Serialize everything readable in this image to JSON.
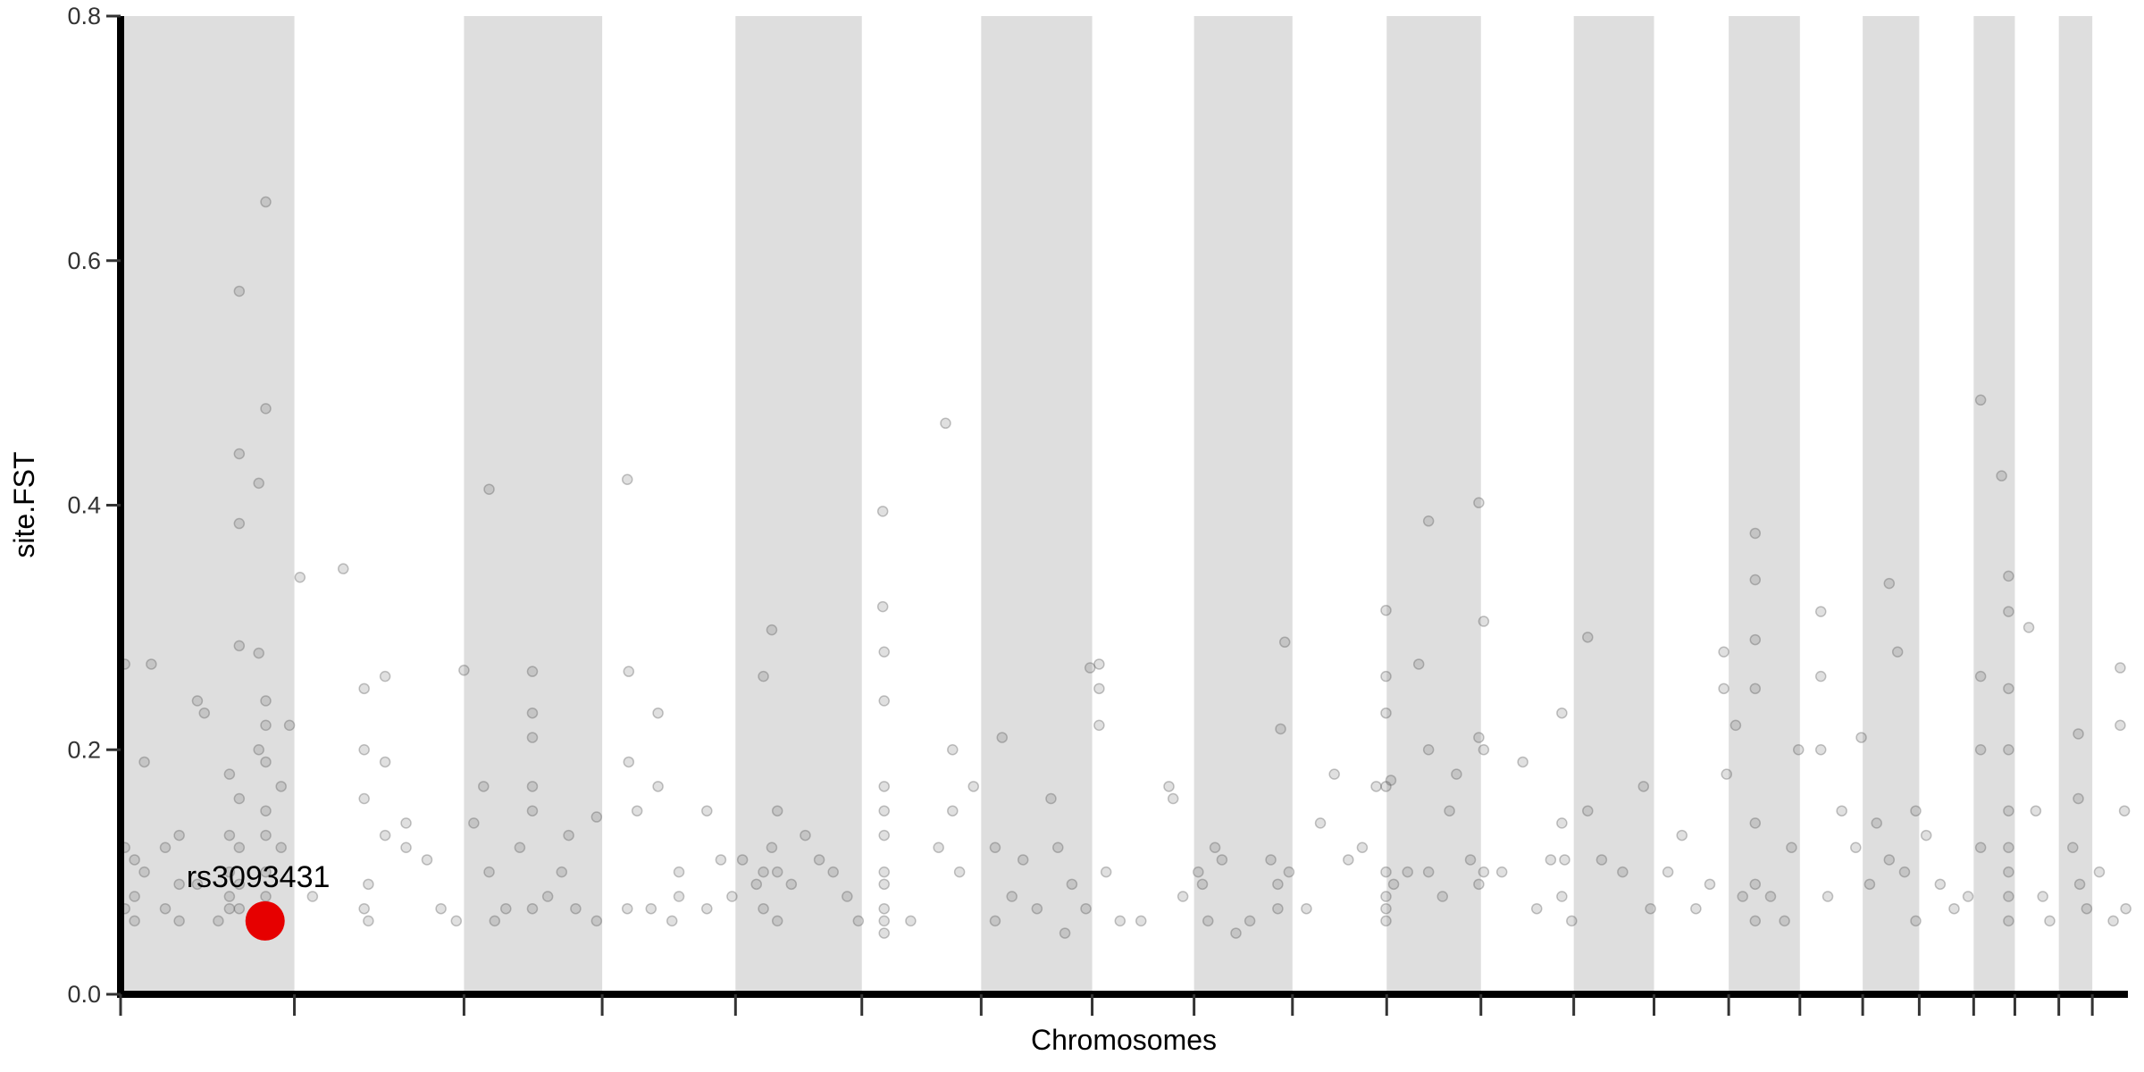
{
  "chart_data": {
    "type": "scatter",
    "title": "",
    "xlabel": "Chromosomes",
    "ylabel": "site.FST",
    "ylim": [
      0,
      0.8
    ],
    "yticks": [
      "0.0",
      "0.2",
      "0.4",
      "0.6",
      "0.8"
    ],
    "ytick_values": [
      0,
      0.2,
      0.4,
      0.6,
      0.8
    ],
    "grid": false,
    "alternating_band_color": "#dedede",
    "point_color": "#555555",
    "highlight_color": "#e60000",
    "chromosome_sizes_mb": [
      249,
      243,
      198,
      191,
      181,
      171,
      159,
      146,
      141,
      135,
      135,
      133,
      115,
      107,
      102,
      90,
      81,
      78,
      59,
      63,
      48,
      51
    ],
    "highlight": {
      "label": "rs3093431",
      "chromosome": 1,
      "position_mb": 207,
      "fst": 0.06
    },
    "points_by_chromosome": [
      [
        [
          6,
          0.27
        ],
        [
          6,
          0.12
        ],
        [
          6,
          0.07
        ],
        [
          20,
          0.11
        ],
        [
          20,
          0.08
        ],
        [
          20,
          0.06
        ],
        [
          34,
          0.19
        ],
        [
          34,
          0.1
        ],
        [
          44,
          0.27
        ],
        [
          64,
          0.12
        ],
        [
          64,
          0.07
        ],
        [
          84,
          0.09
        ],
        [
          84,
          0.06
        ],
        [
          84,
          0.13
        ],
        [
          110,
          0.24
        ],
        [
          110,
          0.09
        ],
        [
          120,
          0.23
        ],
        [
          140,
          0.06
        ],
        [
          156,
          0.18
        ],
        [
          156,
          0.13
        ],
        [
          156,
          0.1
        ],
        [
          156,
          0.08
        ],
        [
          156,
          0.07
        ],
        [
          170,
          0.575
        ],
        [
          170,
          0.442
        ],
        [
          170,
          0.385
        ],
        [
          170,
          0.16
        ],
        [
          170,
          0.12
        ],
        [
          170,
          0.09
        ],
        [
          170,
          0.07
        ],
        [
          170,
          0.285
        ],
        [
          198,
          0.418
        ],
        [
          198,
          0.279
        ],
        [
          198,
          0.2
        ],
        [
          208,
          0.648
        ],
        [
          208,
          0.479
        ],
        [
          208,
          0.24
        ],
        [
          208,
          0.22
        ],
        [
          208,
          0.19
        ],
        [
          208,
          0.15
        ],
        [
          208,
          0.13
        ],
        [
          208,
          0.1
        ],
        [
          208,
          0.08
        ],
        [
          230,
          0.17
        ],
        [
          230,
          0.12
        ],
        [
          242,
          0.22
        ]
      ],
      [
        [
          8,
          0.341
        ],
        [
          26,
          0.08
        ],
        [
          70,
          0.348
        ],
        [
          100,
          0.25
        ],
        [
          100,
          0.2
        ],
        [
          100,
          0.16
        ],
        [
          100,
          0.07
        ],
        [
          106,
          0.09
        ],
        [
          106,
          0.06
        ],
        [
          130,
          0.26
        ],
        [
          130,
          0.19
        ],
        [
          130,
          0.13
        ],
        [
          160,
          0.14
        ],
        [
          160,
          0.12
        ],
        [
          190,
          0.11
        ],
        [
          210,
          0.07
        ],
        [
          232,
          0.06
        ]
      ],
      [
        [
          0,
          0.265
        ],
        [
          14,
          0.14
        ],
        [
          28,
          0.17
        ],
        [
          36,
          0.413
        ],
        [
          36,
          0.1
        ],
        [
          44,
          0.06
        ],
        [
          60,
          0.07
        ],
        [
          80,
          0.12
        ],
        [
          98,
          0.264
        ],
        [
          98,
          0.23
        ],
        [
          98,
          0.21
        ],
        [
          98,
          0.17
        ],
        [
          98,
          0.15
        ],
        [
          98,
          0.07
        ],
        [
          120,
          0.08
        ],
        [
          140,
          0.1
        ],
        [
          150,
          0.13
        ],
        [
          160,
          0.07
        ],
        [
          190,
          0.145
        ],
        [
          190,
          0.06
        ]
      ],
      [
        [
          36,
          0.421
        ],
        [
          36,
          0.07
        ],
        [
          38,
          0.264
        ],
        [
          38,
          0.19
        ],
        [
          50,
          0.15
        ],
        [
          70,
          0.07
        ],
        [
          80,
          0.23
        ],
        [
          80,
          0.17
        ],
        [
          100,
          0.06
        ],
        [
          110,
          0.1
        ],
        [
          110,
          0.08
        ],
        [
          150,
          0.15
        ],
        [
          150,
          0.07
        ],
        [
          170,
          0.11
        ],
        [
          186,
          0.08
        ]
      ],
      [
        [
          10,
          0.11
        ],
        [
          30,
          0.09
        ],
        [
          40,
          0.26
        ],
        [
          40,
          0.1
        ],
        [
          40,
          0.07
        ],
        [
          52,
          0.298
        ],
        [
          52,
          0.12
        ],
        [
          60,
          0.15
        ],
        [
          60,
          0.1
        ],
        [
          60,
          0.06
        ],
        [
          80,
          0.09
        ],
        [
          100,
          0.13
        ],
        [
          120,
          0.11
        ],
        [
          140,
          0.1
        ],
        [
          160,
          0.08
        ],
        [
          176,
          0.06
        ]
      ],
      [
        [
          30,
          0.395
        ],
        [
          30,
          0.317
        ],
        [
          32,
          0.28
        ],
        [
          32,
          0.24
        ],
        [
          32,
          0.17
        ],
        [
          32,
          0.15
        ],
        [
          32,
          0.13
        ],
        [
          32,
          0.1
        ],
        [
          32,
          0.09
        ],
        [
          32,
          0.07
        ],
        [
          32,
          0.06
        ],
        [
          32,
          0.05
        ],
        [
          70,
          0.06
        ],
        [
          110,
          0.12
        ],
        [
          120,
          0.467
        ],
        [
          130,
          0.2
        ],
        [
          130,
          0.15
        ],
        [
          140,
          0.1
        ],
        [
          160,
          0.17
        ]
      ],
      [
        [
          20,
          0.12
        ],
        [
          20,
          0.06
        ],
        [
          30,
          0.21
        ],
        [
          44,
          0.08
        ],
        [
          60,
          0.11
        ],
        [
          80,
          0.07
        ],
        [
          100,
          0.16
        ],
        [
          110,
          0.12
        ],
        [
          120,
          0.05
        ],
        [
          130,
          0.09
        ],
        [
          150,
          0.07
        ],
        [
          156,
          0.267
        ]
      ],
      [
        [
          10,
          0.27
        ],
        [
          10,
          0.25
        ],
        [
          10,
          0.22
        ],
        [
          20,
          0.1
        ],
        [
          40,
          0.06
        ],
        [
          70,
          0.06
        ],
        [
          110,
          0.17
        ],
        [
          116,
          0.16
        ],
        [
          130,
          0.08
        ]
      ],
      [
        [
          6,
          0.1
        ],
        [
          12,
          0.09
        ],
        [
          20,
          0.06
        ],
        [
          30,
          0.12
        ],
        [
          40,
          0.11
        ],
        [
          60,
          0.05
        ],
        [
          80,
          0.06
        ],
        [
          110,
          0.11
        ],
        [
          120,
          0.09
        ],
        [
          120,
          0.07
        ],
        [
          124,
          0.217
        ],
        [
          130,
          0.288
        ],
        [
          136,
          0.1
        ]
      ],
      [
        [
          20,
          0.07
        ],
        [
          40,
          0.14
        ],
        [
          60,
          0.18
        ],
        [
          80,
          0.11
        ],
        [
          100,
          0.12
        ],
        [
          120,
          0.17
        ],
        [
          134,
          0.314
        ],
        [
          134,
          0.26
        ],
        [
          134,
          0.23
        ],
        [
          134,
          0.17
        ],
        [
          134,
          0.1
        ],
        [
          134,
          0.08
        ],
        [
          134,
          0.07
        ],
        [
          134,
          0.06
        ]
      ],
      [
        [
          6,
          0.175
        ],
        [
          10,
          0.09
        ],
        [
          30,
          0.1
        ],
        [
          46,
          0.27
        ],
        [
          60,
          0.387
        ],
        [
          60,
          0.2
        ],
        [
          60,
          0.1
        ],
        [
          80,
          0.08
        ],
        [
          90,
          0.15
        ],
        [
          100,
          0.18
        ],
        [
          120,
          0.11
        ],
        [
          132,
          0.402
        ],
        [
          132,
          0.21
        ],
        [
          132,
          0.09
        ]
      ],
      [
        [
          4,
          0.305
        ],
        [
          4,
          0.2
        ],
        [
          4,
          0.1
        ],
        [
          30,
          0.1
        ],
        [
          60,
          0.19
        ],
        [
          80,
          0.07
        ],
        [
          100,
          0.11
        ],
        [
          116,
          0.23
        ],
        [
          116,
          0.14
        ],
        [
          116,
          0.08
        ],
        [
          120,
          0.11
        ],
        [
          130,
          0.06
        ]
      ],
      [
        [
          20,
          0.292
        ],
        [
          20,
          0.15
        ],
        [
          40,
          0.11
        ],
        [
          70,
          0.1
        ],
        [
          100,
          0.17
        ],
        [
          110,
          0.07
        ]
      ],
      [
        [
          20,
          0.1
        ],
        [
          40,
          0.13
        ],
        [
          60,
          0.07
        ],
        [
          80,
          0.09
        ],
        [
          100,
          0.25
        ],
        [
          100,
          0.28
        ],
        [
          104,
          0.18
        ]
      ],
      [
        [
          10,
          0.22
        ],
        [
          20,
          0.08
        ],
        [
          38,
          0.377
        ],
        [
          38,
          0.339
        ],
        [
          38,
          0.29
        ],
        [
          38,
          0.25
        ],
        [
          38,
          0.14
        ],
        [
          38,
          0.09
        ],
        [
          38,
          0.06
        ],
        [
          60,
          0.08
        ],
        [
          80,
          0.06
        ],
        [
          90,
          0.12
        ],
        [
          100,
          0.2
        ]
      ],
      [
        [
          30,
          0.313
        ],
        [
          30,
          0.26
        ],
        [
          30,
          0.2
        ],
        [
          40,
          0.08
        ],
        [
          60,
          0.15
        ],
        [
          80,
          0.12
        ],
        [
          88,
          0.21
        ]
      ],
      [
        [
          10,
          0.09
        ],
        [
          20,
          0.14
        ],
        [
          38,
          0.336
        ],
        [
          38,
          0.11
        ],
        [
          50,
          0.28
        ],
        [
          60,
          0.1
        ],
        [
          76,
          0.15
        ],
        [
          76,
          0.06
        ]
      ],
      [
        [
          10,
          0.13
        ],
        [
          30,
          0.09
        ],
        [
          50,
          0.07
        ],
        [
          70,
          0.08
        ]
      ],
      [
        [
          10,
          0.486
        ],
        [
          10,
          0.26
        ],
        [
          10,
          0.2
        ],
        [
          10,
          0.12
        ],
        [
          40,
          0.424
        ],
        [
          50,
          0.342
        ],
        [
          50,
          0.313
        ],
        [
          50,
          0.25
        ],
        [
          50,
          0.2
        ],
        [
          50,
          0.15
        ],
        [
          50,
          0.12
        ],
        [
          50,
          0.1
        ],
        [
          50,
          0.08
        ],
        [
          50,
          0.06
        ]
      ],
      [
        [
          20,
          0.3
        ],
        [
          30,
          0.15
        ],
        [
          40,
          0.08
        ],
        [
          50,
          0.06
        ]
      ],
      [
        [
          20,
          0.12
        ],
        [
          28,
          0.213
        ],
        [
          28,
          0.16
        ],
        [
          30,
          0.09
        ],
        [
          40,
          0.07
        ]
      ],
      [
        [
          10,
          0.1
        ],
        [
          30,
          0.06
        ],
        [
          40,
          0.267
        ],
        [
          40,
          0.22
        ],
        [
          46,
          0.15
        ],
        [
          48,
          0.07
        ]
      ]
    ]
  }
}
